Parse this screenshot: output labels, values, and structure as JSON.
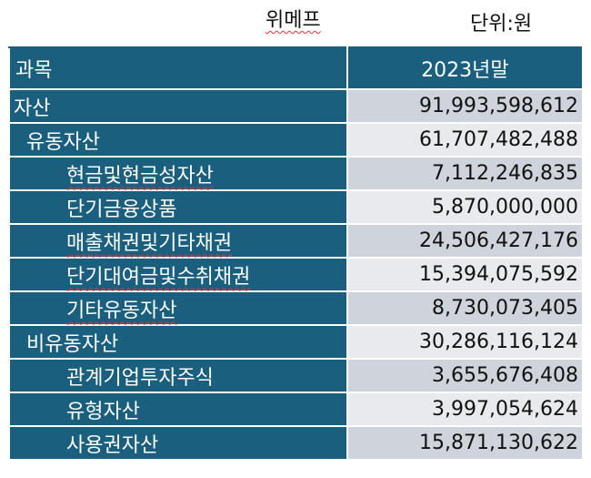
{
  "title": "위메프",
  "unit": "단위:원",
  "header": {
    "account": "과목",
    "period": "2023년말"
  },
  "rows": [
    {
      "label": "자산",
      "value": "91,993,598,612"
    },
    {
      "label": "유동자산",
      "value": "61,707,482,488"
    },
    {
      "label": "현금및현금성자산",
      "value": "7,112,246,835"
    },
    {
      "label": "단기금융상품",
      "value": "5,870,000,000"
    },
    {
      "label": "매출채권및기타채권",
      "value": "24,506,427,176"
    },
    {
      "label": "단기대여금및수취채권",
      "value": "15,394,075,592"
    },
    {
      "label": "기타유동자산",
      "value": "8,730,073,405"
    },
    {
      "label": "비유동자산",
      "value": "30,286,116,124"
    },
    {
      "label": "관계기업투자주식",
      "value": "3,655,676,408"
    },
    {
      "label": "유형자산",
      "value": "3,997,054,624"
    },
    {
      "label": "사용권자산",
      "value": "15,871,130,622"
    }
  ]
}
